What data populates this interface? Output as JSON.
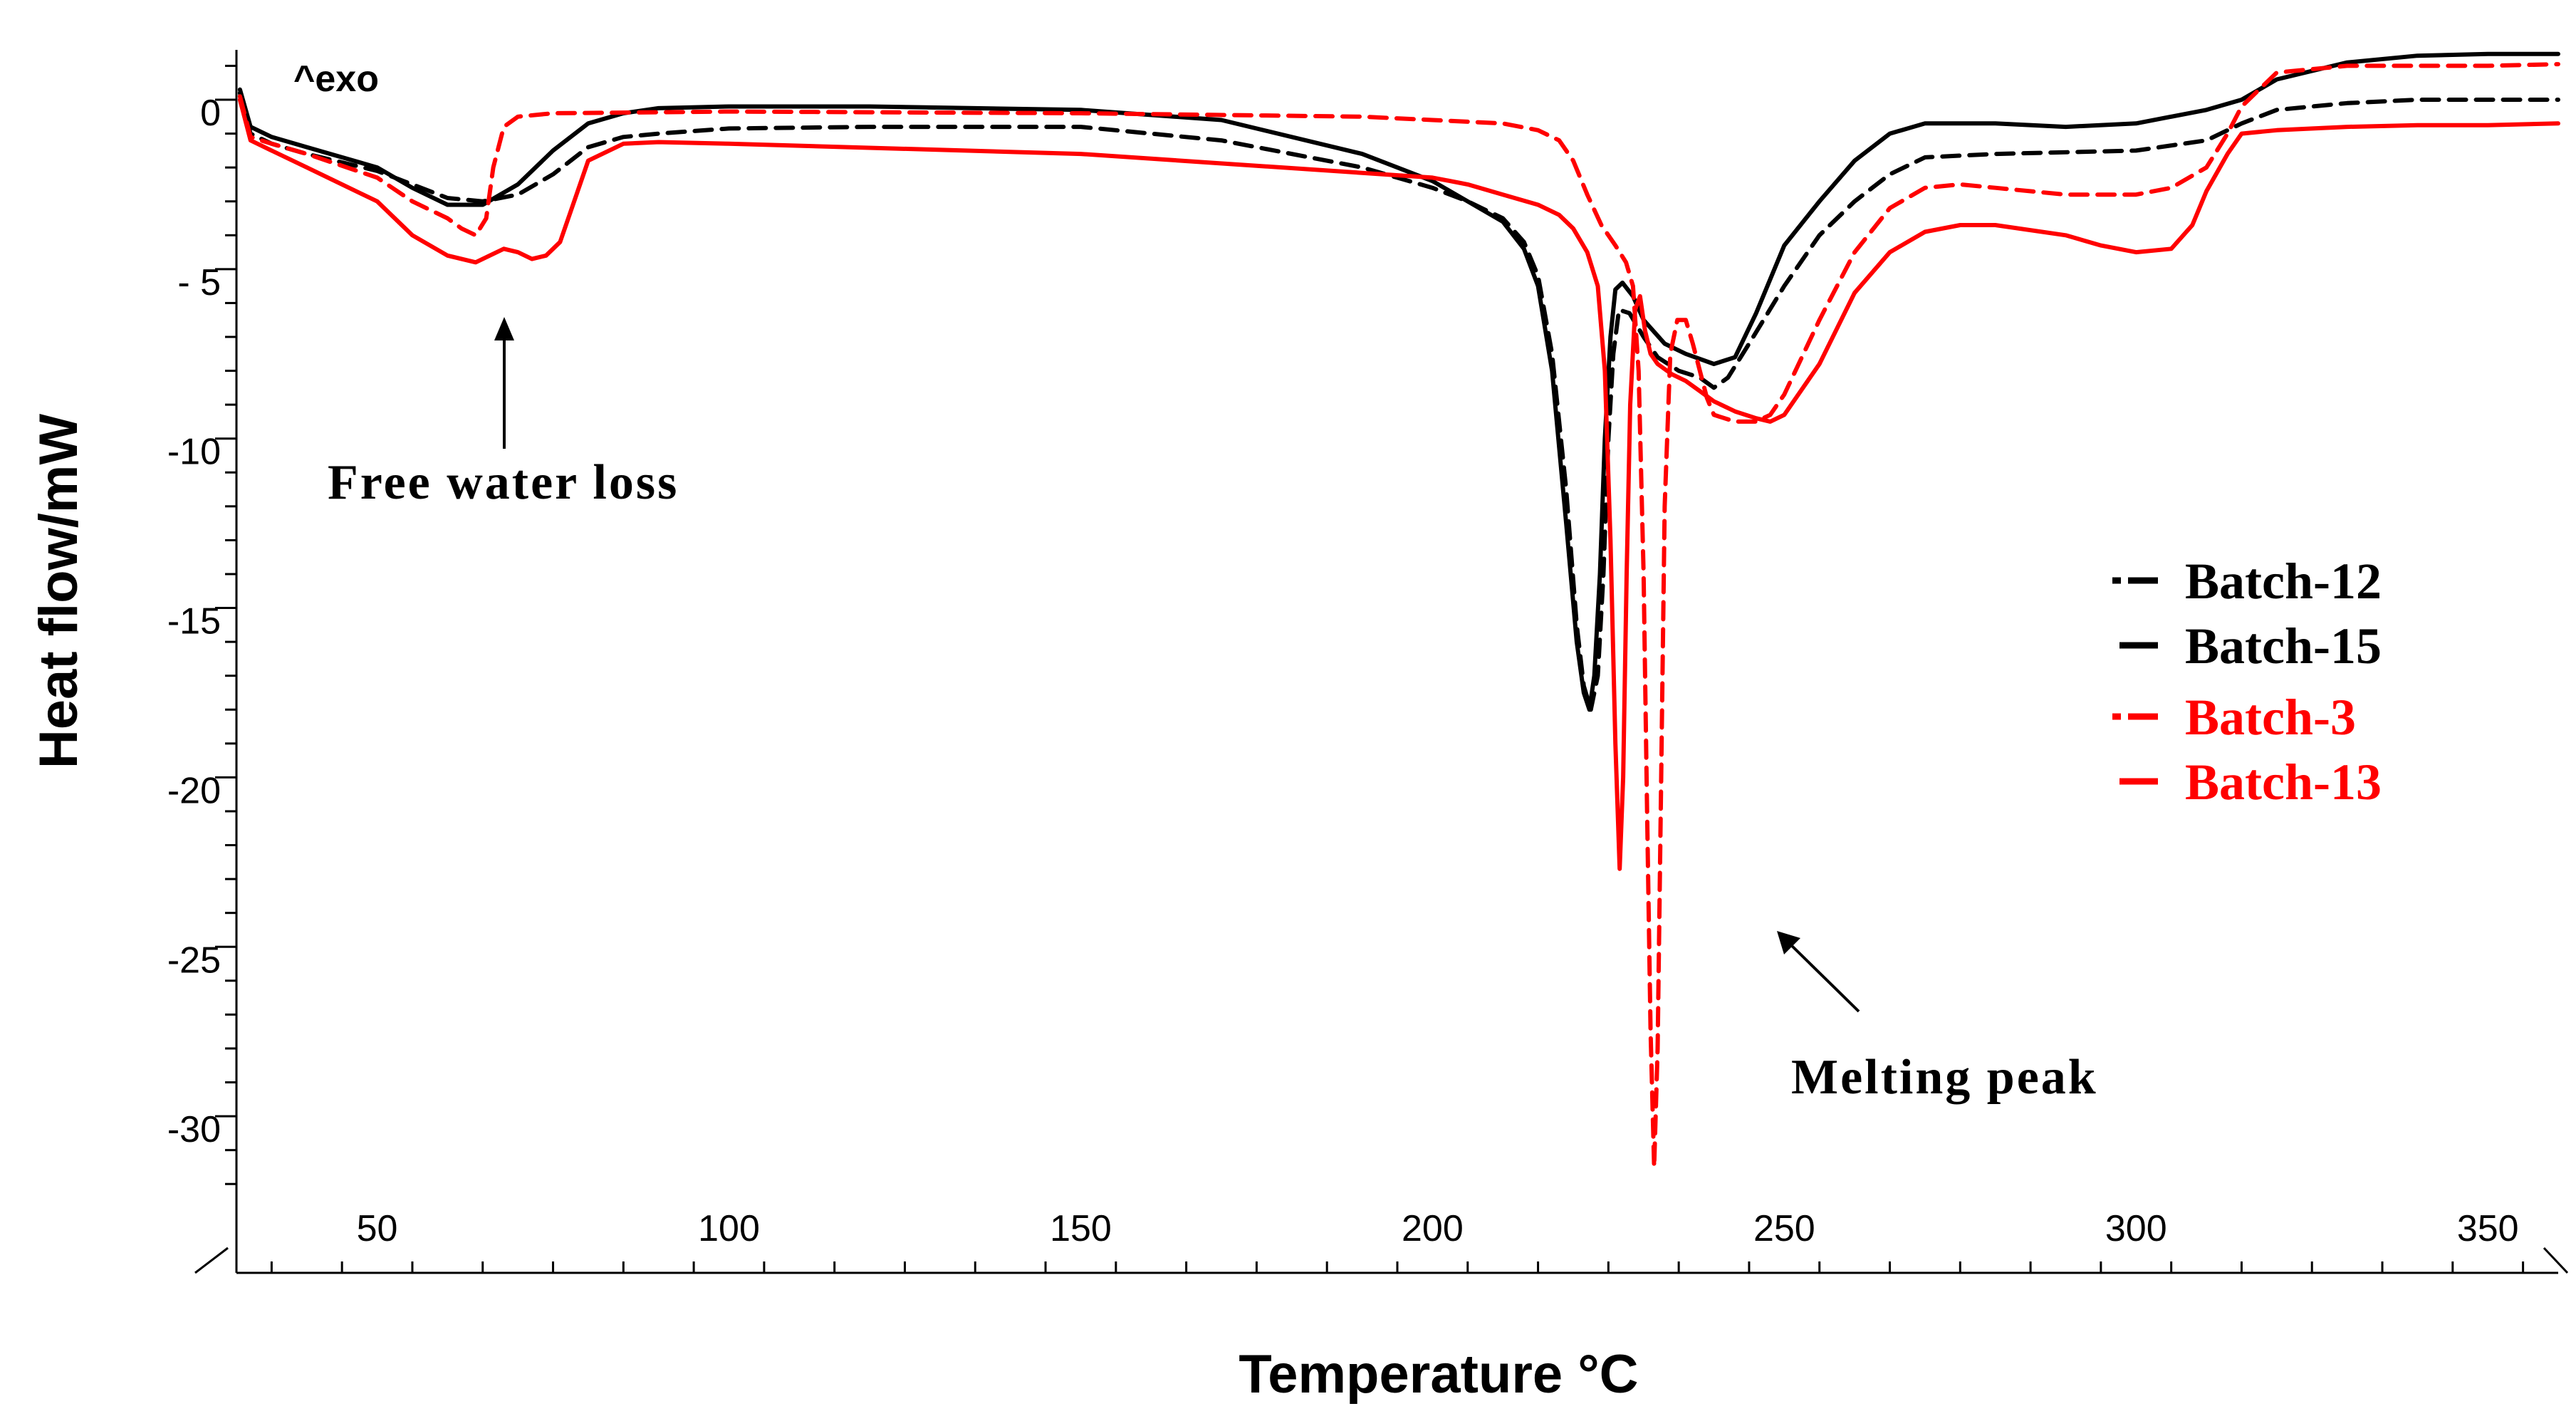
{
  "chart_data": {
    "type": "line",
    "title": "",
    "xlabel": "Temperature °C",
    "ylabel": "Heat flow/mW",
    "corner_label": "^exo",
    "xlim": [
      30,
      360
    ],
    "ylim": [
      -33,
      1.5
    ],
    "x_ticks": [
      50,
      100,
      150,
      200,
      250,
      300,
      350
    ],
    "x_tick_labels": [
      "50",
      "100",
      "150",
      "200",
      "250",
      "300",
      "350"
    ],
    "y_ticks": [
      0,
      -5,
      -10,
      -15,
      -20,
      -25,
      -30
    ],
    "y_tick_labels": [
      "0",
      "- 5",
      "-10",
      "-15",
      "-20",
      "-25",
      "-30"
    ],
    "legend_position": "right",
    "annotations": [
      {
        "text": "Free water loss",
        "points_to": [
          66,
          -6.0
        ]
      },
      {
        "text": "Melting peak",
        "points_to": [
          238,
          -24.5
        ]
      }
    ],
    "series": [
      {
        "name": "Batch-12",
        "color": "#000000",
        "style": "dashed",
        "x": [
          30.5,
          32,
          35,
          40,
          50,
          60,
          65,
          70,
          75,
          80,
          85,
          90,
          100,
          120,
          150,
          170,
          190,
          200,
          205,
          210,
          213,
          215,
          217,
          219,
          220.5,
          221.5,
          222.5,
          223.5,
          224.3,
          225,
          225.7,
          226.5,
          228,
          230,
          232,
          235,
          238,
          240,
          242,
          245,
          250,
          255,
          260,
          265,
          270,
          280,
          300,
          310,
          315,
          320,
          330,
          340,
          350,
          360
        ],
        "y": [
          0.2,
          -1.0,
          -1.3,
          -1.6,
          -2.1,
          -2.9,
          -3.0,
          -2.8,
          -2.2,
          -1.4,
          -1.1,
          -1.0,
          -0.85,
          -0.8,
          -0.8,
          -1.2,
          -2.0,
          -2.6,
          -3.0,
          -3.5,
          -4.2,
          -5.2,
          -7.5,
          -11.5,
          -15.5,
          -17.3,
          -18.0,
          -17.0,
          -14.0,
          -10.0,
          -7.5,
          -6.2,
          -6.3,
          -7.0,
          -7.6,
          -8.0,
          -8.2,
          -8.5,
          -8.2,
          -7.2,
          -5.5,
          -4.0,
          -3.0,
          -2.2,
          -1.7,
          -1.6,
          -1.5,
          -1.2,
          -0.7,
          -0.3,
          -0.1,
          0.0,
          0.0,
          0.0
        ]
      },
      {
        "name": "Batch-15",
        "color": "#000000",
        "style": "solid",
        "x": [
          30.5,
          32,
          35,
          40,
          50,
          55,
          60,
          65,
          70,
          75,
          80,
          85,
          90,
          100,
          120,
          150,
          170,
          190,
          200,
          205,
          210,
          213,
          215,
          217,
          219,
          220.5,
          221.5,
          222.3,
          223,
          223.8,
          224.5,
          225.3,
          226,
          227,
          228.5,
          230,
          233,
          236,
          240,
          243,
          246,
          250,
          255,
          260,
          265,
          270,
          280,
          290,
          300,
          310,
          315,
          320,
          330,
          340,
          350,
          360
        ],
        "y": [
          0.3,
          -0.8,
          -1.1,
          -1.4,
          -2.0,
          -2.6,
          -3.1,
          -3.1,
          -2.5,
          -1.5,
          -0.7,
          -0.4,
          -0.25,
          -0.2,
          -0.2,
          -0.3,
          -0.6,
          -1.6,
          -2.4,
          -3.0,
          -3.6,
          -4.4,
          -5.5,
          -8.0,
          -12.5,
          -16.0,
          -17.5,
          -18.0,
          -17.0,
          -14.0,
          -10.0,
          -7.0,
          -5.6,
          -5.4,
          -5.8,
          -6.5,
          -7.2,
          -7.5,
          -7.8,
          -7.6,
          -6.3,
          -4.3,
          -3.0,
          -1.8,
          -1.0,
          -0.7,
          -0.7,
          -0.8,
          -0.7,
          -0.3,
          0.0,
          0.6,
          1.1,
          1.3,
          1.35,
          1.35
        ]
      },
      {
        "name": "Batch-3",
        "color": "#ff0000",
        "style": "dashed",
        "x": [
          30.5,
          32,
          35,
          40,
          50,
          55,
          60,
          62,
          64,
          65.5,
          66.5,
          68,
          70,
          75,
          100,
          150,
          190,
          200,
          210,
          215,
          218,
          220,
          222,
          224,
          226,
          227.5,
          228.5,
          229.3,
          230,
          230.5,
          231,
          231.5,
          232,
          232.5,
          233,
          233.8,
          234.8,
          236,
          237,
          238,
          239,
          240,
          243,
          246,
          248,
          250,
          255,
          260,
          265,
          270,
          275,
          280,
          290,
          300,
          305,
          310,
          313,
          315,
          320,
          330,
          340,
          350,
          360
        ],
        "y": [
          0.1,
          -1.1,
          -1.3,
          -1.6,
          -2.3,
          -3.0,
          -3.5,
          -3.8,
          -4.0,
          -3.5,
          -2.0,
          -0.8,
          -0.5,
          -0.4,
          -0.35,
          -0.4,
          -0.5,
          -0.6,
          -0.7,
          -0.9,
          -1.2,
          -1.8,
          -2.8,
          -3.7,
          -4.3,
          -4.8,
          -5.5,
          -8.0,
          -14.0,
          -21.0,
          -27.5,
          -31.5,
          -28.0,
          -20.0,
          -12.0,
          -7.5,
          -6.5,
          -6.5,
          -7.2,
          -8.0,
          -8.8,
          -9.3,
          -9.5,
          -9.5,
          -9.3,
          -8.7,
          -6.5,
          -4.5,
          -3.2,
          -2.6,
          -2.5,
          -2.6,
          -2.8,
          -2.8,
          -2.6,
          -2.0,
          -1.0,
          -0.2,
          0.8,
          1.0,
          1.0,
          1.0,
          1.05
        ]
      },
      {
        "name": "Batch-13",
        "color": "#ff0000",
        "style": "solid",
        "x": [
          30.5,
          32,
          35,
          40,
          50,
          55,
          60,
          64,
          66,
          68,
          70,
          72,
          74,
          76,
          78,
          80,
          85,
          90,
          100,
          150,
          200,
          205,
          210,
          215,
          218,
          220,
          222,
          223.5,
          224.5,
          225.3,
          226,
          226.6,
          227.1,
          227.6,
          228.1,
          228.8,
          229.5,
          230.2,
          231,
          232,
          234,
          236,
          238,
          240,
          243,
          246,
          248,
          250,
          255,
          260,
          265,
          270,
          275,
          280,
          290,
          295,
          300,
          305,
          308,
          310,
          313,
          315,
          320,
          330,
          340,
          350,
          360
        ],
        "y": [
          0.0,
          -1.2,
          -1.5,
          -2.0,
          -3.0,
          -4.0,
          -4.6,
          -4.8,
          -4.6,
          -4.4,
          -4.5,
          -4.7,
          -4.6,
          -4.2,
          -3.0,
          -1.8,
          -1.3,
          -1.25,
          -1.3,
          -1.6,
          -2.3,
          -2.5,
          -2.8,
          -3.1,
          -3.4,
          -3.8,
          -4.5,
          -5.5,
          -8.0,
          -13.0,
          -19.0,
          -22.7,
          -20.0,
          -14.0,
          -9.0,
          -6.2,
          -5.8,
          -6.8,
          -7.5,
          -7.8,
          -8.1,
          -8.3,
          -8.6,
          -8.9,
          -9.2,
          -9.4,
          -9.5,
          -9.3,
          -7.8,
          -5.7,
          -4.5,
          -3.9,
          -3.7,
          -3.7,
          -4.0,
          -4.3,
          -4.5,
          -4.4,
          -3.7,
          -2.7,
          -1.6,
          -1.0,
          -0.9,
          -0.8,
          -0.75,
          -0.75,
          -0.7
        ]
      }
    ]
  }
}
